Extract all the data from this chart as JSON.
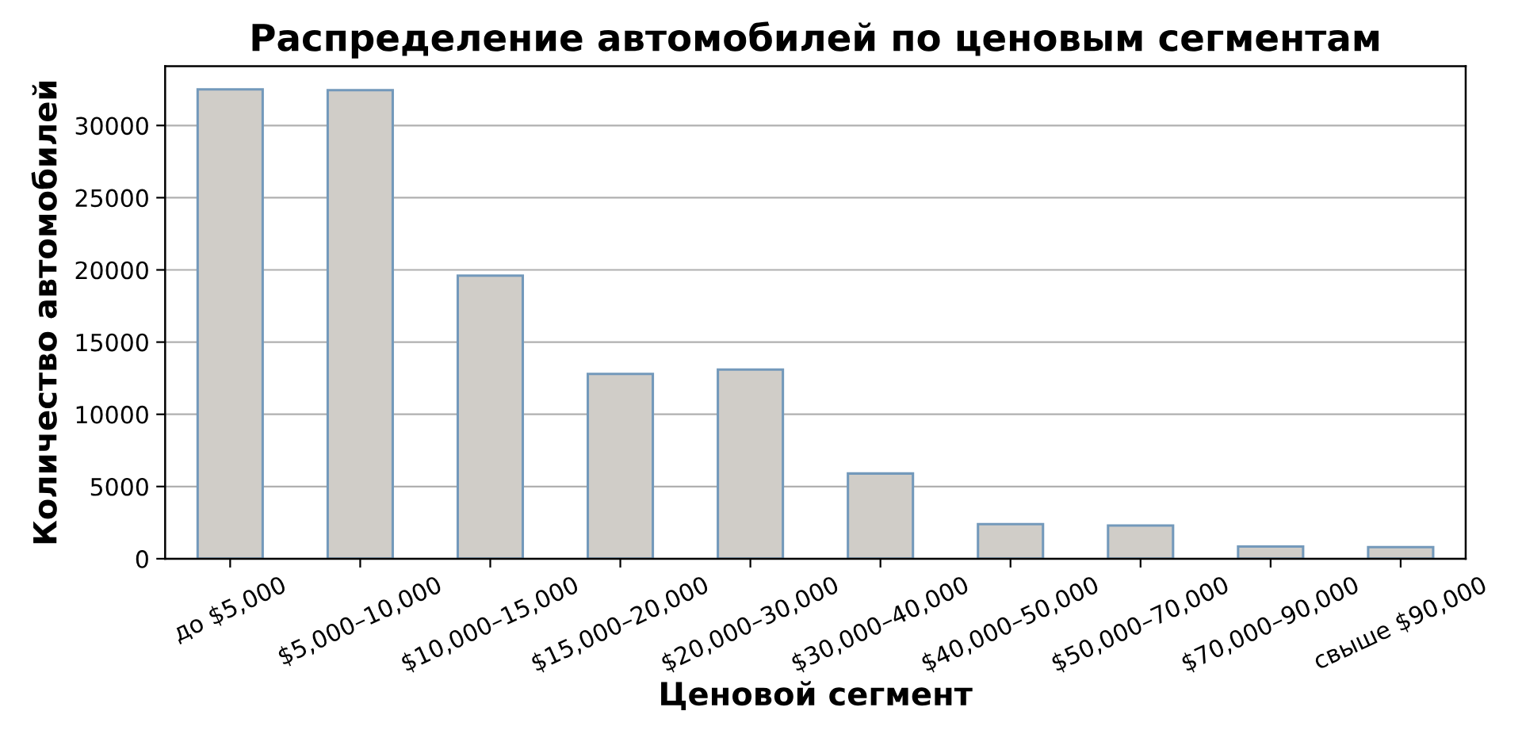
{
  "chart_data": {
    "type": "bar",
    "title": "Распределение автомобилей по ценовым сегментам",
    "xlabel": "Ценовой сегмент",
    "ylabel": "Количество автомобилей",
    "categories": [
      "до $5,000",
      "$5,000–10,000",
      "$10,000–15,000",
      "$15,000–20,000",
      "$20,000–30,000",
      "$30,000–40,000",
      "$40,000–50,000",
      "$50,000–70,000",
      "$70,000–90,000",
      "свыше $90,000"
    ],
    "values": [
      32500,
      32450,
      19600,
      12800,
      13100,
      5900,
      2400,
      2300,
      850,
      800
    ],
    "color": "#d0cdc8",
    "ylim": [
      0,
      34100
    ],
    "yticks": [
      0,
      5000,
      10000,
      15000,
      20000,
      25000,
      30000
    ],
    "grid": "y",
    "legend": false
  }
}
